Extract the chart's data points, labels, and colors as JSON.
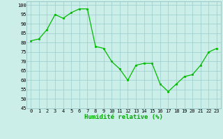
{
  "x": [
    0,
    1,
    2,
    3,
    4,
    5,
    6,
    7,
    8,
    9,
    10,
    11,
    12,
    13,
    14,
    15,
    16,
    17,
    18,
    19,
    20,
    21,
    22,
    23
  ],
  "y": [
    81,
    82,
    87,
    95,
    93,
    96,
    98,
    98,
    78,
    77,
    70,
    66,
    60,
    68,
    69,
    69,
    58,
    54,
    58,
    62,
    63,
    68,
    75,
    77
  ],
  "line_color": "#00bb00",
  "marker_color": "#00bb00",
  "bg_color": "#cceee8",
  "grid_color": "#99cccc",
  "xlabel": "Humidité relative (%)",
  "xlabel_color": "#00aa00",
  "ylim": [
    45,
    102
  ],
  "xlim": [
    -0.5,
    23.5
  ],
  "yticks": [
    45,
    50,
    55,
    60,
    65,
    70,
    75,
    80,
    85,
    90,
    95,
    100
  ],
  "xticks": [
    0,
    1,
    2,
    3,
    4,
    5,
    6,
    7,
    8,
    9,
    10,
    11,
    12,
    13,
    14,
    15,
    16,
    17,
    18,
    19,
    20,
    21,
    22,
    23
  ],
  "tick_color": "#000000",
  "font_family": "monospace",
  "tick_fontsize": 5.0,
  "xlabel_fontsize": 6.5
}
